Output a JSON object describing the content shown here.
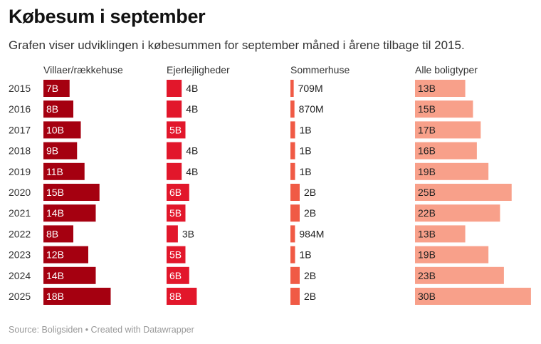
{
  "title": "Købesum i september",
  "subtitle": "Grafen viser udviklingen i købesummen for september måned i årene tilbage til 2015.",
  "source": "Source: Boligsiden • Created with Datawrapper",
  "chart_data": {
    "type": "bar",
    "orientation": "horizontal",
    "categories": [
      "2015",
      "2016",
      "2017",
      "2018",
      "2019",
      "2020",
      "2021",
      "2022",
      "2023",
      "2024",
      "2025"
    ],
    "series": [
      {
        "name": "Villaer/rækkehuse",
        "color": "#a50010",
        "values": [
          7,
          8,
          10,
          9,
          11,
          15,
          14,
          8,
          12,
          14,
          18
        ],
        "labels": [
          "7B",
          "8B",
          "10B",
          "9B",
          "11B",
          "15B",
          "14B",
          "8B",
          "12B",
          "14B",
          "18B"
        ]
      },
      {
        "name": "Ejerlejligheder",
        "color": "#e2172b",
        "values": [
          4,
          4,
          5,
          4,
          4,
          6,
          5,
          3,
          5,
          6,
          8
        ],
        "labels": [
          "4B",
          "4B",
          "5B",
          "4B",
          "4B",
          "6B",
          "5B",
          "3B",
          "5B",
          "6B",
          "8B"
        ]
      },
      {
        "name": "Sommerhuse",
        "color": "#f05a45",
        "values": [
          0.709,
          0.87,
          1,
          1,
          1,
          2,
          2,
          0.984,
          1,
          2,
          2
        ],
        "labels": [
          "709M",
          "870M",
          "1B",
          "1B",
          "1B",
          "2B",
          "2B",
          "984M",
          "1B",
          "2B",
          "2B"
        ]
      },
      {
        "name": "Alle boligtyper",
        "color": "#f8a08a",
        "values": [
          13,
          15,
          17,
          16,
          19,
          25,
          22,
          13,
          19,
          23,
          30
        ],
        "labels": [
          "13B",
          "15B",
          "17B",
          "16B",
          "19B",
          "25B",
          "22B",
          "13B",
          "19B",
          "23B",
          "30B"
        ]
      }
    ]
  }
}
